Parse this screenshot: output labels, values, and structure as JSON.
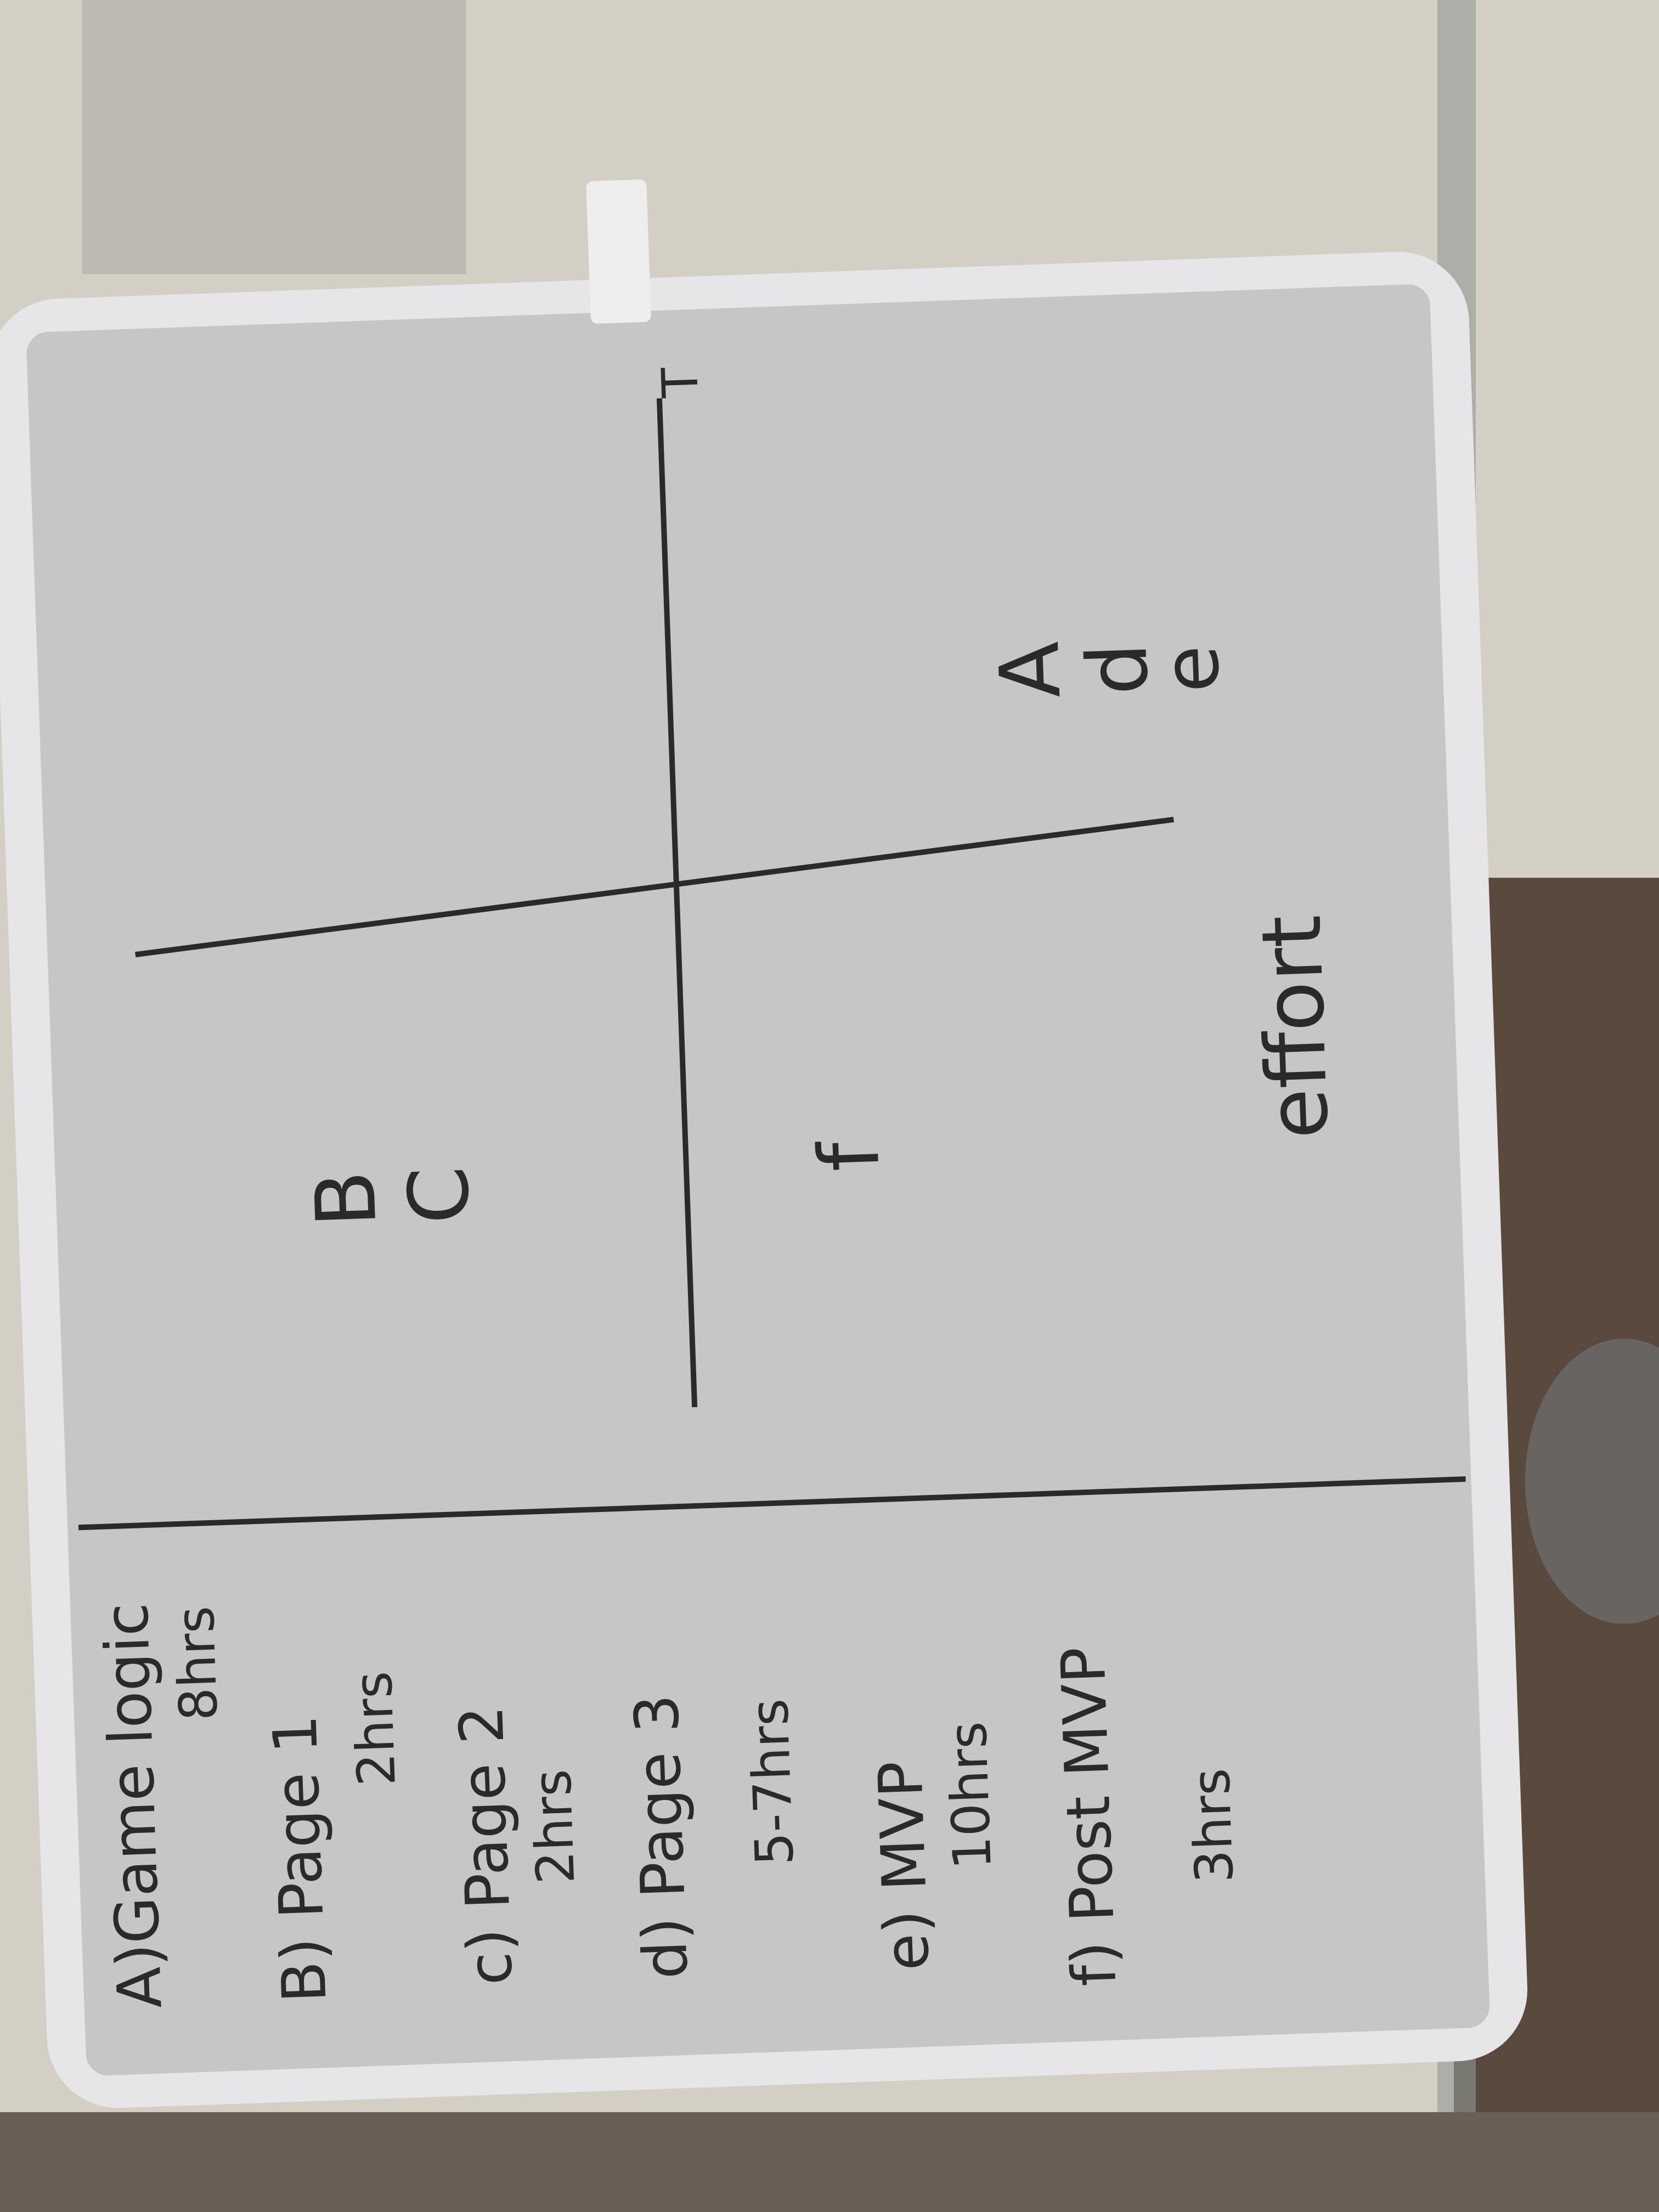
{
  "photo": {
    "subject": "whiteboard-effort-matrix",
    "colors": {
      "board": "#c4c6c8",
      "frame": "#e6e6e8",
      "curtain": "#d7d2c8",
      "floor": "#5a4a3e",
      "ink": "#2a2a2c"
    }
  },
  "task_list": [
    {
      "id": "a",
      "line1": "A)Game logic",
      "line2": "8hrs"
    },
    {
      "id": "b",
      "line1": "B) Page 1",
      "line2": "2hrs"
    },
    {
      "id": "c",
      "line1": "c) Page 2",
      "line2": "2hrs"
    },
    {
      "id": "d",
      "line1": "d) Page 3",
      "line2": "5-7hrs"
    },
    {
      "id": "e",
      "line1": "e) MVP",
      "line2": "10hrs"
    },
    {
      "id": "f",
      "line1": "f) Post MVP",
      "line2": "3hrs"
    }
  ],
  "matrix": {
    "axis_top_label": "T",
    "axis_bottom_label": "effort",
    "quadrant_right_top": [
      "A",
      "d",
      "e"
    ],
    "quadrant_left_top": [
      "B",
      "C"
    ],
    "quadrant_left_bottom": [
      "f"
    ]
  }
}
